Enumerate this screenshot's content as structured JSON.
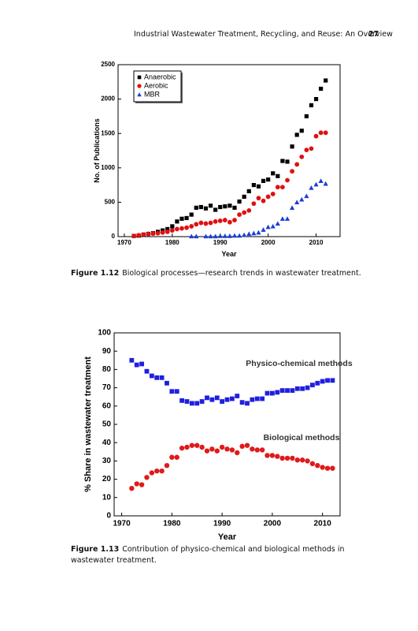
{
  "header": {
    "title": "Industrial Wastewater Treatment, Recycling, and Reuse: An Overview",
    "page": "27"
  },
  "captions": [
    {
      "label": "Figure 1.12",
      "text": "Biological processes—research trends in wastewater treatment."
    },
    {
      "label": "Figure 1.13",
      "text": "Contribution of physico-chemical and biological methods in wastewater treatment."
    }
  ],
  "chart_data": [
    {
      "type": "scatter",
      "xlabel": "Year",
      "ylabel": "No. of Publications",
      "xlim": [
        1968.7,
        2015
      ],
      "ylim": [
        0,
        2500
      ],
      "xticks": [
        1970,
        1980,
        1990,
        2000,
        2010
      ],
      "yticks": [
        0,
        500,
        1000,
        1500,
        2000,
        2500
      ],
      "legend": "upper left",
      "x": [
        1972,
        1973,
        1974,
        1975,
        1976,
        1977,
        1978,
        1979,
        1980,
        1981,
        1982,
        1983,
        1984,
        1985,
        1986,
        1987,
        1988,
        1989,
        1990,
        1991,
        1992,
        1993,
        1994,
        1995,
        1996,
        1997,
        1998,
        1999,
        2000,
        2001,
        2002,
        2003,
        2004,
        2005,
        2006,
        2007,
        2008,
        2009,
        2010,
        2011,
        2012
      ],
      "series": [
        {
          "name": "Anaerobic",
          "color": "#000000",
          "marker": "square",
          "values": [
            10,
            15,
            30,
            40,
            50,
            70,
            90,
            110,
            150,
            220,
            260,
            270,
            320,
            420,
            430,
            410,
            450,
            390,
            430,
            440,
            450,
            420,
            510,
            580,
            660,
            750,
            730,
            810,
            830,
            920,
            880,
            1100,
            1090,
            1310,
            1480,
            1540,
            1750,
            1910,
            2000,
            2150,
            2270
          ]
        },
        {
          "name": "Aerobic",
          "color": "#e01010",
          "marker": "circle",
          "values": [
            10,
            20,
            30,
            40,
            45,
            50,
            60,
            70,
            90,
            110,
            120,
            130,
            150,
            180,
            200,
            190,
            200,
            220,
            230,
            240,
            210,
            240,
            320,
            350,
            380,
            480,
            560,
            520,
            580,
            620,
            720,
            720,
            820,
            950,
            1050,
            1160,
            1260,
            1280,
            1460,
            1510,
            1510
          ]
        },
        {
          "name": "MBR",
          "color": "#1a3fd6",
          "marker": "triangle",
          "values": [
            null,
            null,
            null,
            null,
            null,
            null,
            null,
            null,
            null,
            null,
            null,
            null,
            5,
            5,
            null,
            5,
            5,
            5,
            10,
            10,
            10,
            15,
            15,
            25,
            40,
            50,
            60,
            100,
            140,
            150,
            190,
            260,
            260,
            420,
            500,
            540,
            590,
            710,
            760,
            810,
            770
          ]
        }
      ]
    },
    {
      "type": "scatter",
      "xlabel": "Year",
      "ylabel": "% Share in wastewater treatment",
      "xlim": [
        1968.5,
        2013.5
      ],
      "ylim": [
        0,
        100
      ],
      "xticks": [
        1970,
        1980,
        1990,
        2000,
        2010
      ],
      "yticks": [
        0,
        10,
        20,
        30,
        40,
        50,
        60,
        70,
        80,
        90,
        100
      ],
      "legend": "inline",
      "x": [
        1972,
        1973,
        1974,
        1975,
        1976,
        1977,
        1978,
        1979,
        1980,
        1981,
        1982,
        1983,
        1984,
        1985,
        1986,
        1987,
        1988,
        1989,
        1990,
        1991,
        1992,
        1993,
        1994,
        1995,
        1996,
        1997,
        1998,
        1999,
        2000,
        2001,
        2002,
        2003,
        2004,
        2005,
        2006,
        2007,
        2008,
        2009,
        2010,
        2011,
        2012
      ],
      "series": [
        {
          "name": "Physico-chemical methods",
          "color": "#1f1fe0",
          "marker": "square",
          "values": [
            85,
            82.5,
            83,
            79,
            76.5,
            75.5,
            75.5,
            72.5,
            68,
            68,
            63,
            62.5,
            61.5,
            61.5,
            62.5,
            64.5,
            63.5,
            64.5,
            62.5,
            63.5,
            64,
            65.5,
            62,
            61.5,
            63.5,
            64,
            64,
            67,
            67,
            67.5,
            68.5,
            68.5,
            68.5,
            69.5,
            69.5,
            70,
            71.5,
            72.5,
            73.5,
            74,
            74
          ]
        },
        {
          "name": "Biological methods",
          "color": "#e01a1a",
          "marker": "circle",
          "values": [
            15,
            17.5,
            17,
            21,
            23.5,
            24.5,
            24.5,
            27.5,
            32,
            32,
            37,
            37.5,
            38.5,
            38.5,
            37.5,
            35.5,
            36.5,
            35.5,
            37.5,
            36.5,
            36,
            34.5,
            38,
            38.5,
            36.5,
            36,
            36,
            33,
            33,
            32.5,
            31.5,
            31.5,
            31.5,
            30.5,
            30.5,
            30,
            28.5,
            27.5,
            26.5,
            26,
            26
          ]
        }
      ]
    }
  ]
}
